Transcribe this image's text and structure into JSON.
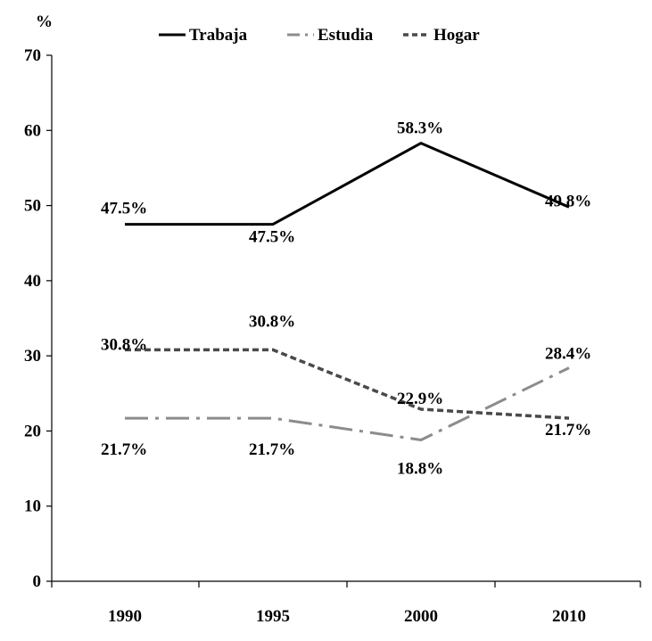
{
  "chart_data": {
    "type": "line",
    "ylabel": "%",
    "categories": [
      "1990",
      "1995",
      "2000",
      "2010"
    ],
    "ylim": [
      0,
      70
    ],
    "yticks": [
      0,
      10,
      20,
      30,
      40,
      50,
      60,
      70
    ],
    "grid": false,
    "legend_position": "top",
    "series": [
      {
        "name": "Trabaja",
        "values": [
          47.5,
          47.5,
          58.3,
          49.8
        ],
        "labels": [
          "47.5%",
          "47.5%",
          "58.3%",
          "49.8%"
        ],
        "color": "#000000",
        "style": "solid"
      },
      {
        "name": "Estudia",
        "values": [
          21.7,
          21.7,
          18.8,
          28.4
        ],
        "labels": [
          "21.7%",
          "21.7%",
          "18.8%",
          "28.4%"
        ],
        "color": "#8c8c8c",
        "style": "dash-dot"
      },
      {
        "name": "Hogar",
        "values": [
          30.8,
          30.8,
          22.9,
          21.7
        ],
        "labels": [
          "30.8%",
          "30.8%",
          "22.9%",
          "21.7%"
        ],
        "color": "#4a4a4a",
        "style": "dotted"
      }
    ]
  }
}
